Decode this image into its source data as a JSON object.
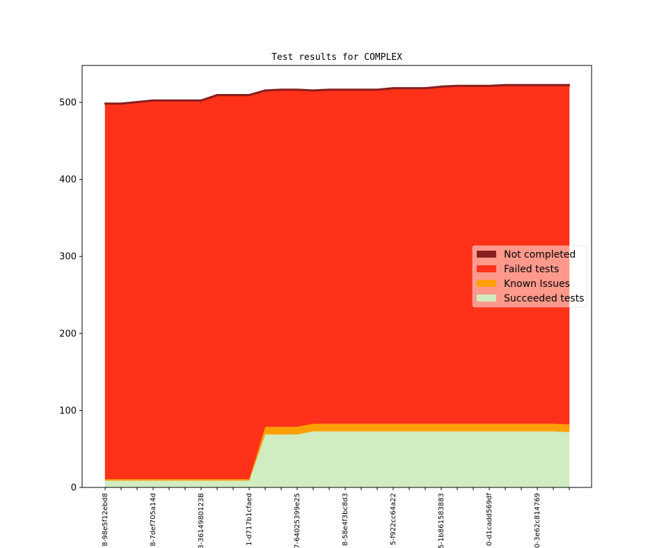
{
  "chart_data": {
    "type": "area",
    "title": "Test results for COMPLEX",
    "xlabel": "",
    "ylabel": "",
    "ylim": [
      0,
      548
    ],
    "yticks": [
      0,
      100,
      200,
      300,
      400,
      500
    ],
    "grid": false,
    "legend_position": "center-right",
    "point_count": 30,
    "x_tick_labels": [
      {
        "index": 0,
        "label": "8-98e5f12ebd8"
      },
      {
        "index": 3,
        "label": "8-7def705a14d"
      },
      {
        "index": 6,
        "label": "3-3614980123B"
      },
      {
        "index": 9,
        "label": "1-d717b1cfaed"
      },
      {
        "index": 12,
        "label": "7-64025399e25"
      },
      {
        "index": 15,
        "label": "8-58e4f3bc8d3"
      },
      {
        "index": 18,
        "label": "5-f922cc64a22"
      },
      {
        "index": 21,
        "label": "5-1b861583883"
      },
      {
        "index": 24,
        "label": "0-d1cadd569df"
      },
      {
        "index": 27,
        "label": "0-3e62c814769"
      }
    ],
    "series": [
      {
        "name": "Succeeded tests",
        "color": "#d0ecc0",
        "values": [
          9,
          9,
          9,
          9,
          9,
          9,
          9,
          9,
          9,
          9,
          69,
          69,
          69,
          73,
          73,
          73,
          73,
          73,
          73,
          73,
          73,
          73,
          73,
          73,
          73,
          73,
          73,
          73,
          73,
          72
        ]
      },
      {
        "name": "Known Issues",
        "color": "#ff9f00",
        "values": [
          2,
          2,
          2,
          2,
          2,
          2,
          2,
          2,
          2,
          2,
          10,
          10,
          10,
          10,
          10,
          10,
          10,
          10,
          10,
          10,
          10,
          10,
          10,
          10,
          10,
          10,
          10,
          10,
          10,
          10
        ]
      },
      {
        "name": "Failed tests",
        "color": "#ff3219",
        "values": [
          487,
          487,
          489,
          491,
          491,
          491,
          491,
          498,
          498,
          498,
          436,
          437,
          437,
          432,
          433,
          433,
          433,
          433,
          435,
          435,
          435,
          437,
          438,
          438,
          438,
          439,
          439,
          439,
          439,
          440
        ]
      },
      {
        "name": "Not completed",
        "color": "#891f1f",
        "values": [
          1,
          1,
          1,
          1,
          1,
          1,
          1,
          1,
          1,
          1,
          1,
          1,
          1,
          1,
          1,
          1,
          1,
          1,
          1,
          1,
          1,
          1,
          1,
          1,
          1,
          1,
          1,
          1,
          1,
          1
        ]
      }
    ]
  }
}
